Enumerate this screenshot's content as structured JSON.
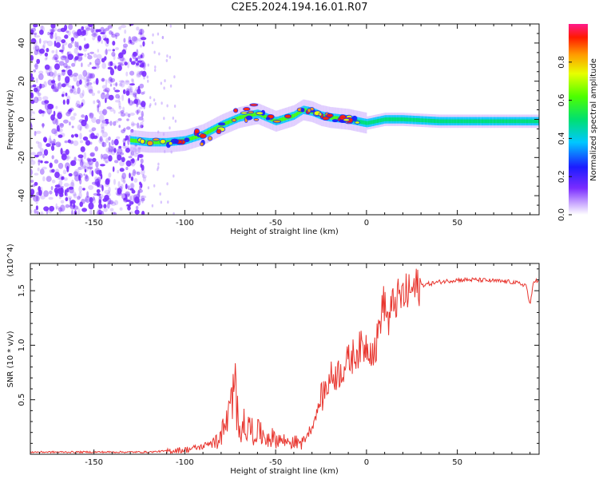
{
  "title": "C2E5.2024.194.16.01.R07",
  "colors": {
    "snr_line": "#e8362f",
    "axis": "#111111",
    "noise": "#7a2cff"
  },
  "chart_data": [
    {
      "type": "heatmap",
      "xlabel": "Height of straight line (km)",
      "ylabel": "Frequency (Hz)",
      "xlim": [
        -185,
        95
      ],
      "ylim": [
        -50,
        50
      ],
      "xticks": [
        -150,
        -100,
        -50,
        0,
        50
      ],
      "yticks": [
        -40,
        -20,
        0,
        20,
        40
      ],
      "colorbar": {
        "label": "Normalized spectral amplitude",
        "range": [
          0,
          1
        ],
        "ticks": [
          "0.0",
          "0.2",
          "0.4",
          "0.6",
          "0.8"
        ],
        "colormap": "rainbow"
      },
      "ridge": {
        "x": [
          -130,
          -120,
          -110,
          -100,
          -90,
          -80,
          -70,
          -60,
          -50,
          -40,
          -35,
          -30,
          -25,
          -20,
          -10,
          0,
          10,
          20,
          40,
          60,
          80,
          95
        ],
        "y": [
          -11,
          -12,
          -12,
          -11,
          -8,
          -3,
          1,
          3,
          -1,
          2,
          5,
          4,
          2,
          1,
          0,
          -2,
          0,
          0,
          -1,
          -1,
          -1,
          -1
        ]
      },
      "noise_region_x": [
        -185,
        -110
      ]
    },
    {
      "type": "line",
      "xlabel": "Height of straight line (km)",
      "ylabel": "SNR (10 * v/v)",
      "multiplier": "(x10^4)",
      "xlim": [
        -185,
        95
      ],
      "ylim": [
        0,
        1.75
      ],
      "xticks": [
        -150,
        -100,
        -50,
        0,
        50
      ],
      "yticks": [
        0.5,
        1.0,
        1.5
      ],
      "series": [
        {
          "x": [
            -185,
            -150,
            -120,
            -110,
            -100,
            -90,
            -82,
            -78,
            -75,
            -72,
            -70,
            -65,
            -60,
            -55,
            -50,
            -45,
            -40,
            -35,
            -30,
            -25,
            -20,
            -15,
            -10,
            -5,
            0,
            5,
            8,
            10,
            12,
            15,
            20,
            25,
            30,
            40,
            50,
            60,
            70,
            80,
            88,
            90,
            92,
            95
          ],
          "y": [
            0.02,
            0.02,
            0.02,
            0.03,
            0.04,
            0.07,
            0.15,
            0.3,
            0.5,
            0.7,
            0.35,
            0.3,
            0.25,
            0.2,
            0.18,
            0.15,
            0.14,
            0.12,
            0.25,
            0.5,
            0.7,
            0.75,
            0.85,
            0.95,
            1.0,
            0.95,
            1.3,
            1.4,
            1.2,
            1.4,
            1.45,
            1.5,
            1.55,
            1.58,
            1.6,
            1.6,
            1.59,
            1.58,
            1.55,
            1.35,
            1.6,
            1.58
          ]
        }
      ]
    }
  ]
}
